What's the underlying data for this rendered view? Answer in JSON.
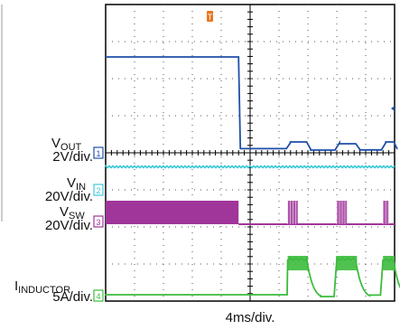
{
  "chart_data": {
    "type": "line",
    "title": "",
    "xlabel": "4ms/div.",
    "grid": true,
    "x_divisions": 10,
    "y_divisions": 8,
    "trigger_marker": "T",
    "trigger_color": "#e87722",
    "channels": [
      {
        "id": "1",
        "name_main": "V",
        "name_sub": "OUT",
        "scale": "2V/div.",
        "color": "#1f4fa8",
        "description": "output voltage: high until about 4.6 div, then drops to near zero with periodic small bumps"
      },
      {
        "id": "2",
        "name_main": "V",
        "name_sub": "IN",
        "scale": "20V/div.",
        "color": "#3cc8d8",
        "description": "input voltage: constant level"
      },
      {
        "id": "3",
        "name_main": "V",
        "name_sub": "SW",
        "scale": "20V/div.",
        "color": "#a0359a",
        "description": "switch node: continuous switching until about 4.6 div, then hiccup bursts"
      },
      {
        "id": "4",
        "name_main": "I",
        "name_sub": "INDUCTOR",
        "scale": "5A/div.",
        "color": "#3dbb3d",
        "description": "inductor current: near zero until about 4.6 div, then periodic current bursts"
      }
    ],
    "bursts_div": [
      [
        6.3,
        7.0
      ],
      [
        8.0,
        8.7
      ],
      [
        9.6,
        10.0
      ]
    ],
    "fault_time_div": 4.6
  }
}
